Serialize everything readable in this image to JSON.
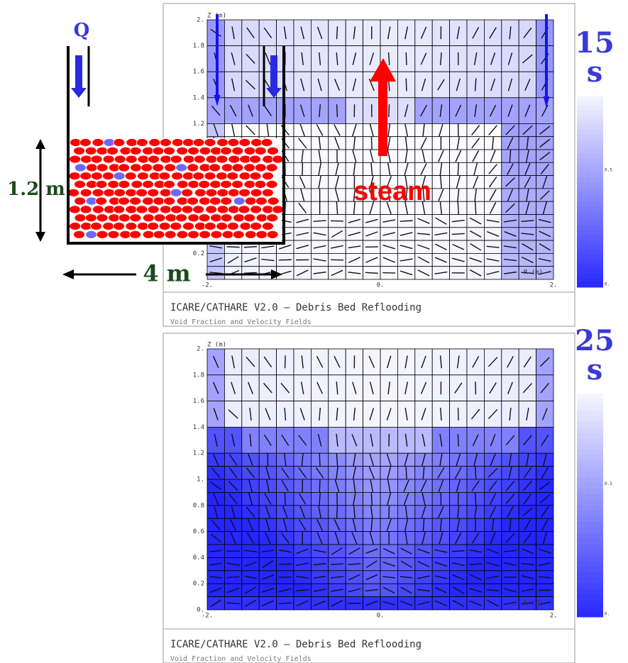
{
  "labels": {
    "flow": "Q",
    "height": "1.2 m",
    "width": "4 m",
    "steam": "steam"
  },
  "panels": [
    {
      "time": "15",
      "time_unit": "s",
      "z_axis_label": "Z (m)",
      "r_axis_label": "R (m)",
      "z_ticks": [
        "2.",
        "1.8",
        "1.6",
        "1.4",
        "1.2",
        "0.2"
      ],
      "r_ticks": [
        "-2.",
        "0.",
        "2."
      ],
      "colorbar_ticks": [
        "0.5",
        "0."
      ],
      "caption_title": "ICARE/CATHARE V2.0 – Debris Bed Reflooding",
      "caption_subtitle": "Void Fraction and Velocity Fields"
    },
    {
      "time": "25",
      "time_unit": "s",
      "z_axis_label": "Z (m)",
      "r_axis_label": "R (m)",
      "z_ticks": [
        "2.",
        "1.8",
        "1.6",
        "1.4",
        "1.2",
        "1.",
        "0.8",
        "0.6",
        "0.4",
        "0.2",
        "0."
      ],
      "r_ticks": [
        "-2.",
        "0.",
        "2."
      ],
      "colorbar_ticks": [
        "0.5",
        "0."
      ],
      "caption_title": "ICARE/CATHARE V2.0 – Debris Bed Reflooding",
      "caption_subtitle": "Void Fraction and Velocity Fields"
    }
  ]
}
